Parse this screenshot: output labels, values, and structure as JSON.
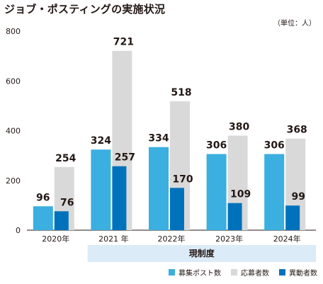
{
  "title": "ジョブ・ポスティングの実施状況",
  "unit": "（単位：人）",
  "band_label": "現制度",
  "colors": {
    "recruit": "#3AAFE0",
    "apply": "#D9D9D9",
    "transfer": "#0072BC",
    "band": "#DCEBF8"
  },
  "chart_data": {
    "type": "bar",
    "categories": [
      "2020年",
      "2021 年",
      "2022年",
      "2023年",
      "2024年"
    ],
    "series": [
      {
        "name": "募集ポスト数",
        "values": [
          96,
          324,
          334,
          306,
          306
        ]
      },
      {
        "name": "応募者数",
        "values": [
          254,
          721,
          518,
          380,
          368
        ]
      },
      {
        "name": "異動者数",
        "values": [
          76,
          257,
          170,
          109,
          99
        ]
      }
    ],
    "yticks": [
      "0",
      "200",
      "400",
      "600",
      "800"
    ],
    "ylim": [
      0,
      800
    ],
    "grid": false,
    "legend": "bottom-right"
  }
}
